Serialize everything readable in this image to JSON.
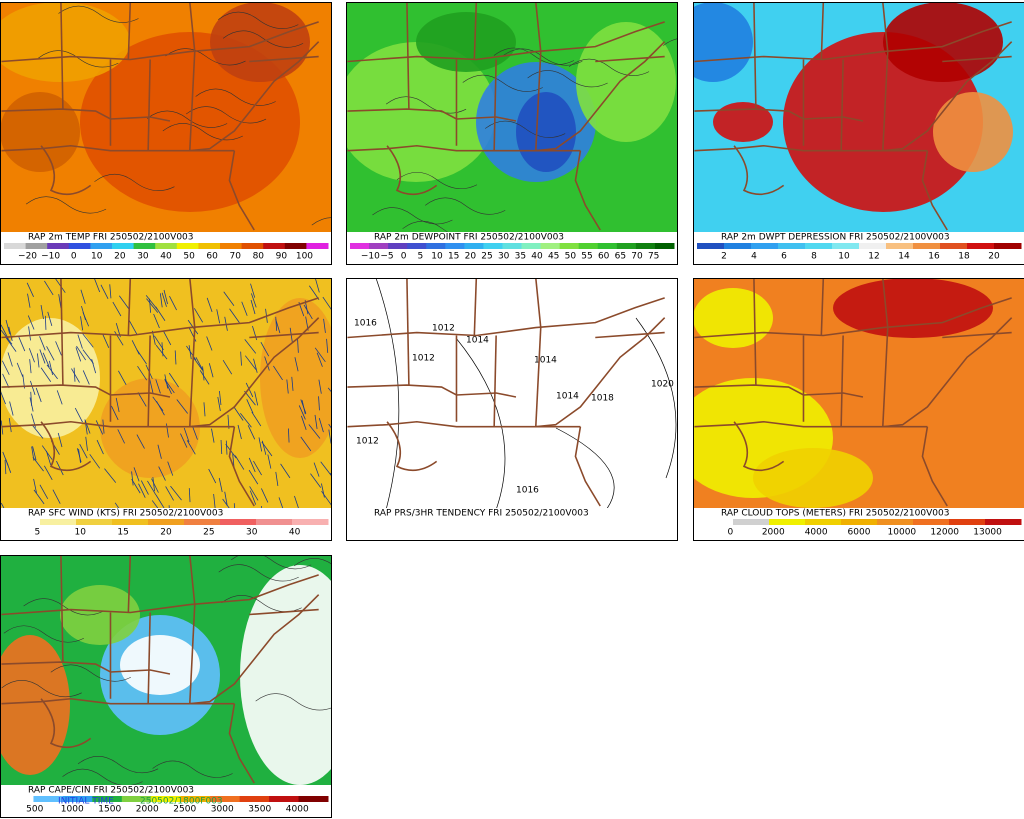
{
  "panels": [
    {
      "caption": "RAP 2m TEMP FRI 250502/2100V003",
      "legend_labels": [
        "−20",
        "−10",
        "0",
        "10",
        "20",
        "30",
        "40",
        "50",
        "60",
        "70",
        "80",
        "90",
        "100"
      ],
      "legend_colors": [
        "#d8d8d8",
        "#a0a0a0",
        "#6a3ab8",
        "#3050e0",
        "#30a0f0",
        "#30d0f0",
        "#30c040",
        "#a0e040",
        "#f0f000",
        "#f0c000",
        "#f08000",
        "#e05000",
        "#c01010",
        "#800000",
        "#e020e0"
      ]
    },
    {
      "caption": "RAP 2m DEWPOINT FRI 250502/2100V003",
      "legend_labels": [
        "−10",
        "−5",
        "0",
        "5",
        "10",
        "15",
        "20",
        "25",
        "30",
        "35",
        "40",
        "45",
        "50",
        "55",
        "60",
        "65",
        "70",
        "75"
      ],
      "legend_colors": [
        "#e030e0",
        "#a040c0",
        "#6040c0",
        "#4050d0",
        "#3070e0",
        "#3090f0",
        "#30b0f0",
        "#40d0f0",
        "#60e0e0",
        "#80f0c0",
        "#a0f080",
        "#80e040",
        "#50d030",
        "#30c030",
        "#20a020",
        "#108010",
        "#006000"
      ]
    },
    {
      "caption": "RAP 2m DWPT DEPRESSION FRI 250502/2100V003",
      "legend_labels": [
        "2",
        "4",
        "6",
        "8",
        "10",
        "12",
        "14",
        "16",
        "18",
        "20"
      ],
      "legend_colors": [
        "#2050c0",
        "#2080e0",
        "#30a0f0",
        "#40c0f0",
        "#50d8f0",
        "#80e8f0",
        "#f0f0f0",
        "#f8c080",
        "#f09040",
        "#e05020",
        "#d01010",
        "#a00000"
      ]
    },
    {
      "caption": "RAP SFC WIND (KTS) FRI 250502/2100V003",
      "legend_labels": [
        "5",
        "10",
        "15",
        "20",
        "25",
        "30",
        "40"
      ],
      "legend_colors": [
        "#ffffff",
        "#f8f0a0",
        "#f0d040",
        "#f0c020",
        "#f0a020",
        "#f08040",
        "#f06060",
        "#f09090",
        "#f8b0b0"
      ]
    },
    {
      "caption": "RAP PRS/3HR TENDENCY FRI 250502/2100V003",
      "legend_labels": [],
      "legend_colors": [],
      "contour_labels": [
        1012,
        1012,
        1014,
        1014,
        1014,
        1016,
        1018,
        1020,
        1012,
        1016
      ]
    },
    {
      "caption": "RAP CLOUD TOPS (METERS) FRI 250502/2100V003",
      "legend_labels": [
        "0",
        "2000",
        "4000",
        "6000",
        "10000",
        "12000",
        "13000"
      ],
      "legend_colors": [
        "#ffffff",
        "#d0d0d0",
        "#f0f000",
        "#f0d000",
        "#f0b000",
        "#f09020",
        "#f07020",
        "#e04010",
        "#c01010"
      ]
    },
    {
      "caption": "RAP CAPE/CIN FRI 250502/2100V003",
      "initial_time": "INITIAL TIME",
      "initial_stamp": "250502/1800F003",
      "legend_labels": [
        "500",
        "1000",
        "1500",
        "2000",
        "2500",
        "3000",
        "3500",
        "4000"
      ],
      "legend_colors": [
        "#ffffff",
        "#60c0ff",
        "#30a0f0",
        "#20b040",
        "#80d040",
        "#f0f000",
        "#f0b000",
        "#f07020",
        "#e04010",
        "#c01010",
        "#800000"
      ]
    }
  ]
}
